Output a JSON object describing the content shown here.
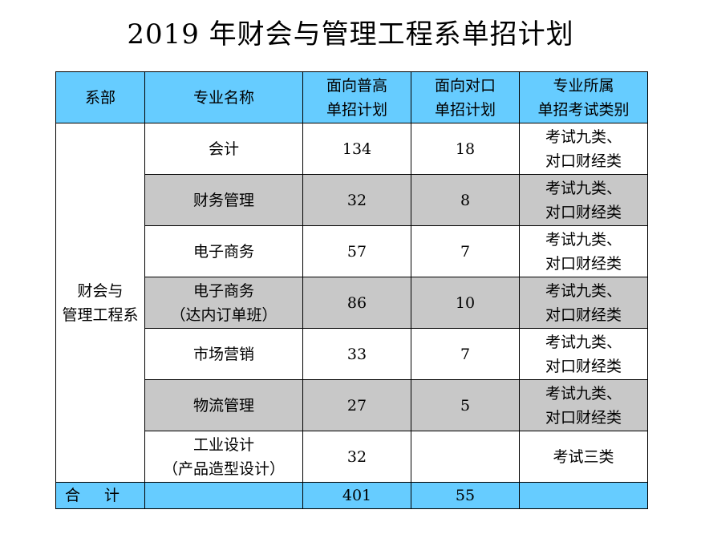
{
  "title": "2019 年财会与管理工程系单招计划",
  "headers": {
    "dept": "系部",
    "major": "专业名称",
    "general_line1": "面向普高",
    "general_line2": "单招计划",
    "vocational_line1": "面向对口",
    "vocational_line2": "单招计划",
    "category_line1": "专业所属",
    "category_line2": "单招考试类别"
  },
  "department": {
    "line1": "财会与",
    "line2": "管理工程系"
  },
  "rows": [
    {
      "major_line1": "会计",
      "major_line2": "",
      "general": "134",
      "vocational": "18",
      "cat_line1": "考试九类、",
      "cat_line2": "对口财经类"
    },
    {
      "major_line1": "财务管理",
      "major_line2": "",
      "general": "32",
      "vocational": "8",
      "cat_line1": "考试九类、",
      "cat_line2": "对口财经类"
    },
    {
      "major_line1": "电子商务",
      "major_line2": "",
      "general": "57",
      "vocational": "7",
      "cat_line1": "考试九类、",
      "cat_line2": "对口财经类"
    },
    {
      "major_line1": "电子商务",
      "major_line2": "（达内订单班）",
      "general": "86",
      "vocational": "10",
      "cat_line1": "考试九类、",
      "cat_line2": "对口财经类"
    },
    {
      "major_line1": "市场营销",
      "major_line2": "",
      "general": "33",
      "vocational": "7",
      "cat_line1": "考试九类、",
      "cat_line2": "对口财经类"
    },
    {
      "major_line1": "物流管理",
      "major_line2": "",
      "general": "27",
      "vocational": "5",
      "cat_line1": "考试九类、",
      "cat_line2": "对口财经类"
    },
    {
      "major_line1": "工业设计",
      "major_line2": "（产品造型设计）",
      "general": "32",
      "vocational": "",
      "cat_line1": "考试三类",
      "cat_line2": ""
    }
  ],
  "total": {
    "label": "合计",
    "general": "401",
    "vocational": "55"
  },
  "colors": {
    "header_bg": "#66ccff",
    "shaded_row_bg": "#c8c8c8"
  }
}
